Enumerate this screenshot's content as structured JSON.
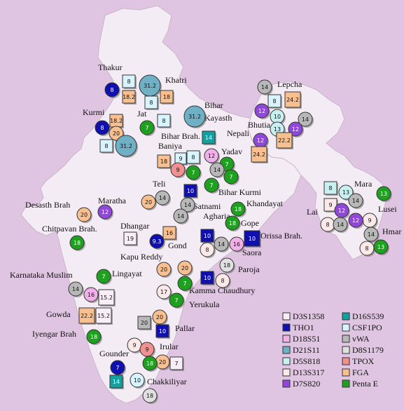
{
  "colors": {
    "background": "#dfc5e2",
    "land": "#f4ecf4",
    "land_stroke": "#c8b4c8",
    "D3S1358": "#f8eef8",
    "THO1": "#1010b0",
    "D18S51": "#f0b0e8",
    "D21S11": "#6fb0c4",
    "D5S818": "#c8f0f0",
    "D13S317": "#fbe8e8",
    "D7S820": "#9048d8",
    "D16S539": "#12a0a0",
    "CSF1PO": "#d8f4ff",
    "vWA": "#b8b8b8",
    "D8S1179": "#e0e0e0",
    "TPOX": "#f09090",
    "FGA": "#f8c090",
    "PentaE": "#20a020"
  },
  "legend": [
    {
      "name": "D3S1358",
      "color": "#f8eef8"
    },
    {
      "name": "THO1",
      "color": "#1010b0"
    },
    {
      "name": "D18S51",
      "color": "#f0b0e8"
    },
    {
      "name": "D21S11",
      "color": "#6fb0c4"
    },
    {
      "name": "D5S818",
      "color": "#c8f0f0"
    },
    {
      "name": "D13S317",
      "color": "#fbe8e8"
    },
    {
      "name": "D7S820",
      "color": "#9048d8"
    },
    {
      "name": "D16S539",
      "color": "#12a0a0"
    },
    {
      "name": "CSF1PO",
      "color": "#d8f4ff"
    },
    {
      "name": "vWA",
      "color": "#b8b8b8"
    },
    {
      "name": "D8S1179",
      "color": "#e0e0e0"
    },
    {
      "name": "TPOX",
      "color": "#f09090"
    },
    {
      "name": "FGA",
      "color": "#f8c090"
    },
    {
      "name": "Penta E",
      "color": "#20a020"
    }
  ],
  "labels": [
    "Thakur",
    "Khatri",
    "Bihar",
    "Kayasth",
    "Kurmi",
    "Jat",
    "Bihar Brah.",
    "Baniya",
    "Yadav",
    "Lepcha",
    "Bhutia",
    "Nepali",
    "Teli",
    "Bihar Kurmi",
    "Khandayat",
    "Satnami",
    "Agharia",
    "Maratha",
    "Desasth Brah",
    "Chitpavan Brah.",
    "Dhangar",
    "Gond",
    "Gope",
    "Orissa Brah.",
    "Saora",
    "Paroja",
    "Kapu Reddy",
    "Lingayat",
    "Karnataka Muslim",
    "Kamma Chaudhury",
    "Yerukula",
    "Gowda",
    "Iyengar Brah",
    "Pallar",
    "Irular",
    "Gounder",
    "Chakkiliyar",
    "Mara",
    "Lai",
    "Lusei",
    "Hmar"
  ],
  "markers": [
    {
      "locus": "THO1",
      "value": "8"
    },
    {
      "locus": "CSF1PO",
      "value": "8"
    },
    {
      "locus": "FGA",
      "value": "18.2"
    },
    {
      "locus": "D21S11",
      "value": "31.2"
    },
    {
      "locus": "CSF1PO",
      "value": "8"
    },
    {
      "locus": "FGA",
      "value": "18"
    },
    {
      "locus": "D21S11",
      "value": "31.2"
    },
    {
      "locus": "THO1",
      "value": "8"
    },
    {
      "locus": "FGA",
      "value": "18.2"
    },
    {
      "locus": "FGA",
      "value": "20"
    },
    {
      "locus": "CSF1PO",
      "value": "8"
    },
    {
      "locus": "D21S11",
      "value": "31.2"
    },
    {
      "locus": "PentaE",
      "value": "7"
    },
    {
      "locus": "CSF1PO",
      "value": "8"
    },
    {
      "locus": "D16S539",
      "value": "14"
    },
    {
      "locus": "FGA",
      "value": "18"
    },
    {
      "locus": "CSF1PO",
      "value": "9"
    },
    {
      "locus": "CSF1PO",
      "value": "8"
    },
    {
      "locus": "TPOX",
      "value": "9"
    },
    {
      "locus": "PentaE",
      "value": "7"
    },
    {
      "locus": "D18S51",
      "value": "12"
    },
    {
      "locus": "PentaE",
      "value": "7"
    },
    {
      "locus": "vWA",
      "value": "14"
    },
    {
      "locus": "PentaE",
      "value": "7"
    },
    {
      "locus": "PentaE",
      "value": "7"
    },
    {
      "locus": "vWA",
      "value": "14"
    },
    {
      "locus": "FGA",
      "value": "24.2"
    },
    {
      "locus": "CSF1PO",
      "value": "8"
    },
    {
      "locus": "D7S820",
      "value": "12"
    },
    {
      "locus": "D5S818",
      "value": "10"
    },
    {
      "locus": "vWA",
      "value": "14"
    },
    {
      "locus": "D5S818",
      "value": "13"
    },
    {
      "locus": "D7S820",
      "value": "12"
    },
    {
      "locus": "D7S820",
      "value": "12"
    },
    {
      "locus": "FGA",
      "value": "24.2"
    },
    {
      "locus": "FGA",
      "value": "22.2"
    },
    {
      "locus": "FGA",
      "value": "20"
    },
    {
      "locus": "vWA",
      "value": "14"
    },
    {
      "locus": "THO1",
      "value": "10"
    },
    {
      "locus": "vWA",
      "value": "14"
    },
    {
      "locus": "vWA",
      "value": "14"
    },
    {
      "locus": "PentaE",
      "value": "18"
    },
    {
      "locus": "PentaE",
      "value": "18"
    },
    {
      "locus": "FGA",
      "value": "20"
    },
    {
      "locus": "D7S820",
      "value": "12"
    },
    {
      "locus": "PentaE",
      "value": "18"
    },
    {
      "locus": "D3S1358",
      "value": "19"
    },
    {
      "locus": "FGA",
      "value": "16"
    },
    {
      "locus": "THO1",
      "value": "9.3"
    },
    {
      "locus": "THO1",
      "value": "10"
    },
    {
      "locus": "vWA",
      "value": "14"
    },
    {
      "locus": "D13S317",
      "value": "8"
    },
    {
      "locus": "D18S51",
      "value": "16"
    },
    {
      "locus": "THO1",
      "value": "10"
    },
    {
      "locus": "FGA",
      "value": "20"
    },
    {
      "locus": "FGA",
      "value": "20"
    },
    {
      "locus": "THO1",
      "value": "10"
    },
    {
      "locus": "D8S1179",
      "value": "18"
    },
    {
      "locus": "D13S317",
      "value": "8"
    },
    {
      "locus": "PentaE",
      "value": "7"
    },
    {
      "locus": "PentaE",
      "value": "7"
    },
    {
      "locus": "vWA",
      "value": "14"
    },
    {
      "locus": "D18S51",
      "value": "16"
    },
    {
      "locus": "D3S1358",
      "value": "15.2"
    },
    {
      "locus": "D13S317",
      "value": "17"
    },
    {
      "locus": "PentaE",
      "value": "7"
    },
    {
      "locus": "FGA",
      "value": "22.2"
    },
    {
      "locus": "D3S1358",
      "value": "15.2"
    },
    {
      "locus": "PentaE",
      "value": "18"
    },
    {
      "locus": "FGA",
      "value": "20"
    },
    {
      "locus": "vWA",
      "value": "20"
    },
    {
      "locus": "THO1",
      "value": "10"
    },
    {
      "locus": "D13S317",
      "value": "9"
    },
    {
      "locus": "TPOX",
      "value": "9"
    },
    {
      "locus": "FGA",
      "value": "20"
    },
    {
      "locus": "D3S1358",
      "value": "7"
    },
    {
      "locus": "PentaE",
      "value": "18"
    },
    {
      "locus": "THO1",
      "value": "7"
    },
    {
      "locus": "D16S539",
      "value": "14"
    },
    {
      "locus": "CSF1PO",
      "value": "10"
    },
    {
      "locus": "D8S1179",
      "value": "18"
    },
    {
      "locus": "D5S818",
      "value": "8"
    },
    {
      "locus": "D5S818",
      "value": "13"
    },
    {
      "locus": "D13S317",
      "value": "9"
    },
    {
      "locus": "vWA",
      "value": "14"
    },
    {
      "locus": "PentaE",
      "value": "13"
    },
    {
      "locus": "D13S317",
      "value": "8"
    },
    {
      "locus": "vWA",
      "value": "14"
    },
    {
      "locus": "D7S820",
      "value": "12"
    },
    {
      "locus": "D13S317",
      "value": "9"
    },
    {
      "locus": "D7S820",
      "value": "12"
    },
    {
      "locus": "vWA",
      "value": "14"
    },
    {
      "locus": "D13S317",
      "value": "8"
    },
    {
      "locus": "PentaE",
      "value": "13"
    }
  ]
}
